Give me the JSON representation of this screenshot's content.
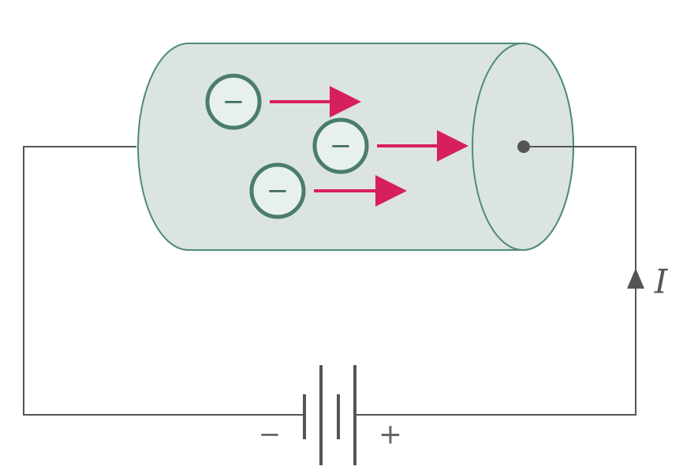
{
  "colors": {
    "wire": "#555555",
    "cylinder_fill": "#dbe4e0",
    "cylinder_stroke": "#4f8a77",
    "electron_fill": "#e8f0ec",
    "electron_stroke": "#4a7d6b",
    "arrow": "#d81f5e"
  },
  "electrons": [
    {
      "symbol": "−"
    },
    {
      "symbol": "−"
    },
    {
      "symbol": "−"
    }
  ],
  "battery": {
    "negative_label": "−",
    "positive_label": "+"
  },
  "current": {
    "label": "I"
  }
}
